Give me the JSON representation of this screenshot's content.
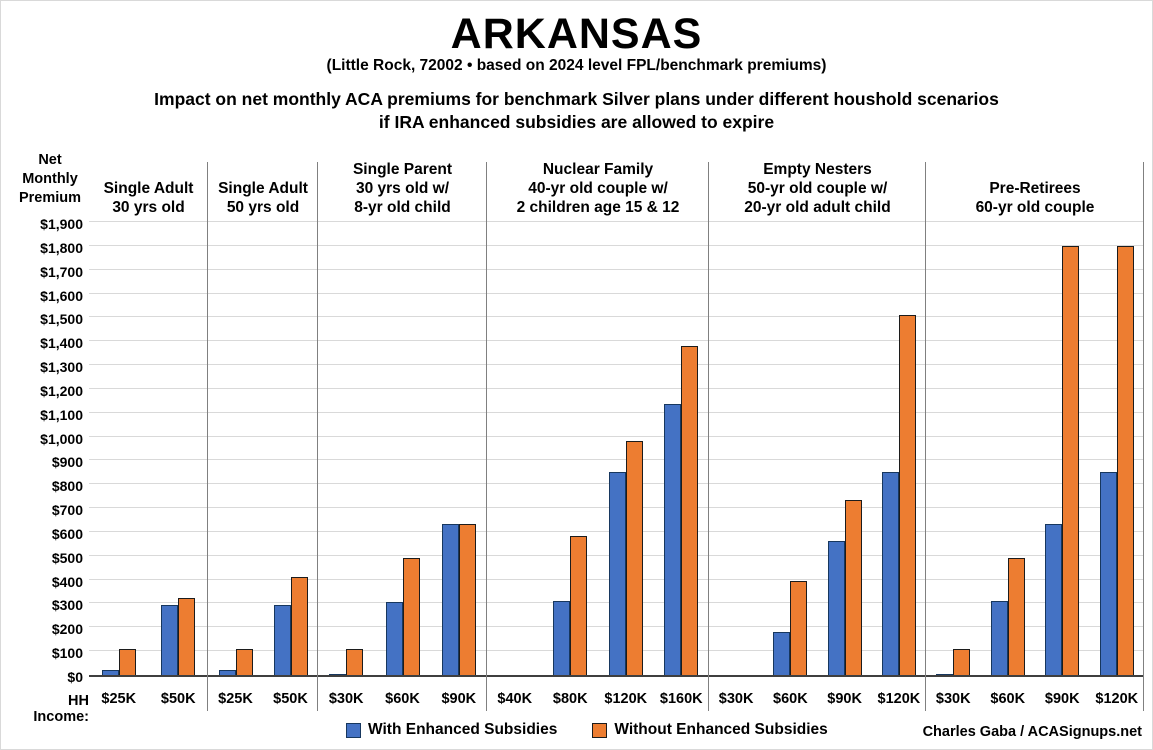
{
  "title": "ARKANSAS",
  "subtitle": "(Little Rock, 72002 • based on 2024 level FPL/benchmark premiums)",
  "description_line1": "Impact on net monthly ACA premiums for benchmark Silver plans under different houshold scenarios",
  "description_line2": "if IRA enhanced subsidies are allowed to expire",
  "y_axis_title": "Net\nMonthly\nPremium",
  "hh_income_label": "HH Income:",
  "credit": "Charles Gaba / ACASignups.net",
  "legend": [
    {
      "label": "With Enhanced Subsidies",
      "color": "#4472C4",
      "border": "#17375E"
    },
    {
      "label": "Without Enhanced Subsidies",
      "color": "#ED7D31",
      "border": "#1C1C1C"
    }
  ],
  "colors": {
    "with_enhanced_fill": "#4472C4",
    "with_enhanced_border": "#17375E",
    "without_enhanced_fill": "#ED7D31",
    "without_enhanced_border": "#1C1C1C",
    "gridline": "#D9D9D9",
    "divider": "#808080",
    "axis": "#3F3F3F",
    "text": "#000000",
    "background": "#FFFFFF"
  },
  "chart_data": {
    "type": "bar",
    "title": "ARKANSAS",
    "ylabel": "Net Monthly Premium",
    "xlabel": "HH Income",
    "ylim": [
      0,
      1900
    ],
    "ytick_step": 100,
    "ytick_format": "$#,##0",
    "grid": "horizontal",
    "legend_position": "bottom",
    "series_names": [
      "With Enhanced Subsidies",
      "Without Enhanced Subsidies"
    ],
    "groups": [
      {
        "header_lines": [
          "Single Adult",
          "30 yrs old"
        ],
        "incomes": [
          "$25K",
          "$50K"
        ],
        "with_enhanced": [
          20,
          295
        ],
        "without_enhanced": [
          110,
          325
        ]
      },
      {
        "header_lines": [
          "Single Adult",
          "50 yrs old"
        ],
        "incomes": [
          "$25K",
          "$50K"
        ],
        "with_enhanced": [
          20,
          295
        ],
        "without_enhanced": [
          110,
          410
        ]
      },
      {
        "header_lines": [
          "Single Parent",
          "30 yrs old w/",
          "8-yr old child"
        ],
        "incomes": [
          "$30K",
          "$60K",
          "$90K"
        ],
        "with_enhanced": [
          5,
          305,
          635
        ],
        "without_enhanced": [
          110,
          490,
          635
        ]
      },
      {
        "header_lines": [
          "Nuclear Family",
          "40-yr old couple w/",
          "2 children age 15 & 12"
        ],
        "incomes": [
          "$40K",
          "$80K",
          "$120K",
          "$160K"
        ],
        "with_enhanced": [
          0,
          310,
          850,
          1135
        ],
        "without_enhanced": [
          0,
          585,
          980,
          1380
        ]
      },
      {
        "header_lines": [
          "Empty Nesters",
          "50-yr old couple w/",
          "20-yr old adult child"
        ],
        "incomes": [
          "$30K",
          "$60K",
          "$90K",
          "$120K"
        ],
        "with_enhanced": [
          0,
          180,
          560,
          850
        ],
        "without_enhanced": [
          0,
          395,
          735,
          1510
        ]
      },
      {
        "header_lines": [
          "Pre-Retirees",
          "60-yr old couple"
        ],
        "incomes": [
          "$30K",
          "$60K",
          "$90K",
          "$120K"
        ],
        "with_enhanced": [
          5,
          310,
          635,
          850
        ],
        "without_enhanced": [
          110,
          490,
          1800,
          1800
        ]
      }
    ]
  }
}
